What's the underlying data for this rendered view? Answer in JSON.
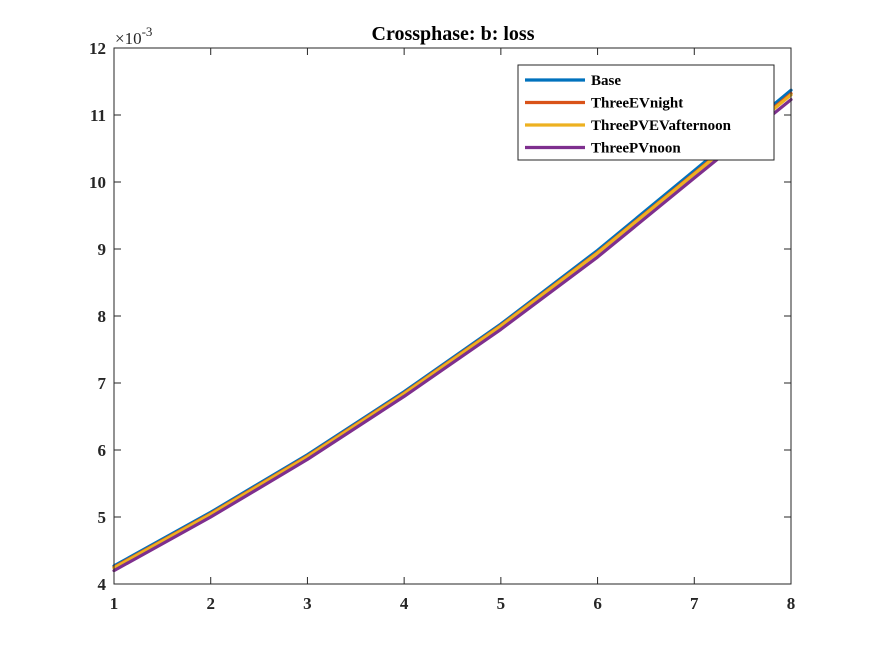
{
  "chart_data": {
    "type": "line",
    "title": "Crossphase: b: loss",
    "xlabel": "",
    "ylabel": "",
    "xlim": [
      1,
      8
    ],
    "ylim": [
      4,
      12
    ],
    "y_multiplier": "×10",
    "y_exponent": "-3",
    "x_ticks": [
      "1",
      "2",
      "3",
      "4",
      "5",
      "6",
      "7",
      "8"
    ],
    "y_ticks": [
      "4",
      "5",
      "6",
      "7",
      "8",
      "9",
      "10",
      "11",
      "12"
    ],
    "grid": false,
    "legend_position": "top-right",
    "x": [
      1,
      2,
      3,
      4,
      5,
      6,
      7,
      8
    ],
    "series": [
      {
        "name": "Base",
        "color": "#0072BD",
        "values": [
          4.27,
          5.07,
          5.93,
          6.87,
          7.88,
          8.98,
          10.17,
          11.37
        ]
      },
      {
        "name": "ThreeEVnight",
        "color": "#D95319",
        "values": [
          4.25,
          5.05,
          5.91,
          6.85,
          7.86,
          8.95,
          10.13,
          11.32
        ]
      },
      {
        "name": "ThreePVEVafternoon",
        "color": "#EDB120",
        "values": [
          4.24,
          5.04,
          5.9,
          6.84,
          7.85,
          8.94,
          10.12,
          11.3
        ]
      },
      {
        "name": "ThreePVnoon",
        "color": "#7E2F8E",
        "values": [
          4.2,
          5.0,
          5.86,
          6.8,
          7.8,
          8.88,
          10.06,
          11.23
        ]
      }
    ]
  }
}
